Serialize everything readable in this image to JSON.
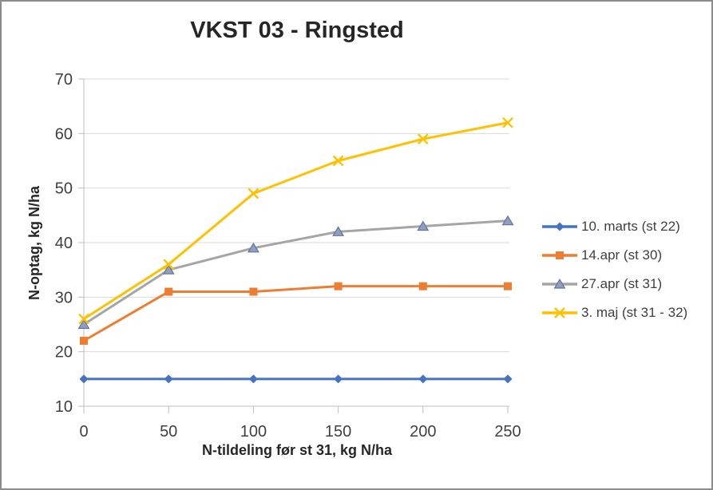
{
  "chart_data": {
    "type": "line",
    "title": "VKST 03 - Ringsted",
    "xlabel": "N-tildeling før st 31, kg N/ha",
    "ylabel": "N-optag, kg N/ha",
    "x": [
      0,
      50,
      100,
      150,
      200,
      250
    ],
    "xlim": [
      0,
      250
    ],
    "ylim": [
      10,
      70
    ],
    "y_ticks": [
      10,
      20,
      30,
      40,
      50,
      60,
      70
    ],
    "grid": true,
    "legend_position": "right",
    "series": [
      {
        "name": "10. marts (st 22)",
        "color": "#4472C4",
        "marker": "diamond",
        "values": [
          15,
          15,
          15,
          15,
          15,
          15
        ]
      },
      {
        "name": "14.apr (st 30)",
        "color": "#ED7D31",
        "marker": "square",
        "values": [
          22,
          31,
          31,
          32,
          32,
          32
        ]
      },
      {
        "name": "27.apr (st 31)",
        "color": "#A5A5A5",
        "marker": "triangle",
        "marker_fill": "#8FA0BE",
        "marker_stroke": "#62749E",
        "values": [
          25,
          35,
          39,
          42,
          43,
          44
        ]
      },
      {
        "name": "3. maj (st 31 - 32)",
        "color": "#FFC000",
        "marker": "x",
        "values": [
          26,
          36,
          49,
          55,
          59,
          62
        ]
      }
    ],
    "colors": {
      "gridline": "#D9D9D9",
      "axis": "#BFBFBF",
      "tick_label": "#404040",
      "title": "#262626",
      "border": "#8C8C8C",
      "background": "#FFFFFF"
    }
  }
}
